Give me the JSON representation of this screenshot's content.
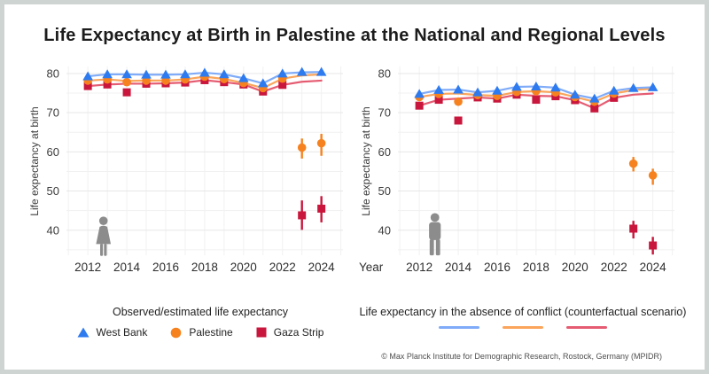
{
  "title": "Life Expectancy at Birth in Palestine at the National and Regional Levels",
  "footer": "© Max Planck Institute for Demographic Research, Rostock, Germany (MPIDR)",
  "colors": {
    "west_bank_marker": "#2e7bf0",
    "palestine_marker": "#f6821f",
    "gaza_marker": "#c9163c",
    "west_bank_line": "#7fabf8",
    "palestine_line": "#fba55b",
    "gaza_line": "#e55c72",
    "icon_gray": "#8c8c8c",
    "grid": "#e7e7e7",
    "grid_minor": "#f1f1f1",
    "tick_text": "#3c3c3c"
  },
  "legend_observed": {
    "title": "Observed/estimated life expectancy",
    "items": [
      {
        "label": "West Bank",
        "marker": "triangle",
        "color_key": "west_bank"
      },
      {
        "label": "Palestine",
        "marker": "circle",
        "color_key": "palestine"
      },
      {
        "label": "Gaza Strip",
        "marker": "square",
        "color_key": "gaza"
      }
    ]
  },
  "legend_counterfactual": {
    "title": "Life expectancy in the absence of conflict (counterfactual scenario)",
    "items": [
      {
        "series": "West Bank",
        "color_key": "west_bank"
      },
      {
        "series": "Palestine",
        "color_key": "palestine"
      },
      {
        "series": "Gaza Strip",
        "color_key": "gaza"
      }
    ]
  },
  "chart_data": [
    {
      "type": "line",
      "panel": "females",
      "icon": "female",
      "ylabel": "Life expectancy at birth",
      "xlabel": "",
      "x": [
        2012,
        2013,
        2014,
        2015,
        2016,
        2017,
        2018,
        2019,
        2020,
        2021,
        2022,
        2023,
        2024
      ],
      "x_tick_labels": [
        2012,
        2014,
        2016,
        2018,
        2020,
        2022,
        2024
      ],
      "y_tick_labels": [
        40,
        50,
        60,
        70,
        80
      ],
      "ylim": [
        33,
        82
      ],
      "grid": true,
      "series": [
        {
          "name": "West Bank",
          "marker": "triangle",
          "color_key": "west_bank",
          "values": [
            79.3,
            79.8,
            79.8,
            79.7,
            79.7,
            79.8,
            80.2,
            79.8,
            78.8,
            77.5,
            80.0,
            80.4,
            80.4
          ],
          "ci_low": [
            null,
            null,
            null,
            null,
            null,
            null,
            null,
            null,
            null,
            null,
            null,
            null,
            null
          ],
          "ci_high": [
            null,
            null,
            null,
            null,
            null,
            null,
            null,
            null,
            null,
            null,
            null,
            null,
            null
          ]
        },
        {
          "name": "Palestine",
          "marker": "circle",
          "color_key": "palestine",
          "values": [
            78.2,
            78.5,
            77.8,
            78.2,
            78.2,
            78.5,
            79.2,
            78.6,
            77.6,
            76.3,
            78.7,
            61.1,
            62.2
          ],
          "ci_low": [
            null,
            null,
            null,
            null,
            null,
            null,
            null,
            null,
            null,
            null,
            null,
            58.3,
            59.0
          ],
          "ci_high": [
            null,
            null,
            null,
            null,
            null,
            null,
            null,
            null,
            null,
            null,
            null,
            63.4,
            64.6
          ]
        },
        {
          "name": "Gaza Strip",
          "marker": "square",
          "color_key": "gaza",
          "values": [
            76.8,
            77.2,
            75.2,
            77.4,
            77.5,
            77.7,
            78.3,
            77.8,
            77.2,
            75.4,
            77.1,
            43.8,
            45.5
          ],
          "ci_low": [
            null,
            null,
            null,
            null,
            null,
            null,
            null,
            null,
            null,
            null,
            null,
            40.1,
            42.0
          ],
          "ci_high": [
            null,
            null,
            null,
            null,
            null,
            null,
            null,
            null,
            null,
            null,
            null,
            47.6,
            48.7
          ]
        }
      ],
      "counterfactual": [
        {
          "name": "West Bank",
          "color_key": "west_bank",
          "values": [
            79.3,
            79.8,
            79.8,
            79.7,
            79.7,
            79.8,
            80.2,
            79.8,
            78.8,
            77.5,
            80.0,
            80.3,
            80.4
          ]
        },
        {
          "name": "Palestine",
          "color_key": "palestine",
          "values": [
            78.2,
            78.5,
            78.1,
            78.2,
            78.2,
            78.5,
            79.2,
            78.6,
            77.6,
            76.3,
            78.7,
            79.5,
            79.8
          ]
        },
        {
          "name": "Gaza Strip",
          "color_key": "gaza",
          "values": [
            76.8,
            77.2,
            77.4,
            77.4,
            77.5,
            77.7,
            78.3,
            77.8,
            77.2,
            75.4,
            77.1,
            77.9,
            78.2
          ]
        }
      ]
    },
    {
      "type": "line",
      "panel": "males",
      "icon": "male",
      "ylabel": "Life expectancy at birth",
      "xlabel": "Year",
      "x": [
        2012,
        2013,
        2014,
        2015,
        2016,
        2017,
        2018,
        2019,
        2020,
        2021,
        2022,
        2023,
        2024
      ],
      "x_tick_labels": [
        2012,
        2014,
        2016,
        2018,
        2020,
        2022,
        2024
      ],
      "y_tick_labels": [
        40,
        50,
        60,
        70,
        80
      ],
      "ylim": [
        33,
        82
      ],
      "grid": true,
      "series": [
        {
          "name": "West Bank",
          "marker": "triangle",
          "color_key": "west_bank",
          "values": [
            74.8,
            75.8,
            75.9,
            75.2,
            75.6,
            76.6,
            76.7,
            76.4,
            74.6,
            73.6,
            75.6,
            76.3,
            76.5
          ],
          "ci_low": [
            null,
            null,
            null,
            null,
            null,
            null,
            null,
            null,
            null,
            null,
            null,
            null,
            null
          ],
          "ci_high": [
            null,
            null,
            null,
            null,
            null,
            null,
            null,
            null,
            null,
            null,
            null,
            null,
            null
          ]
        },
        {
          "name": "Palestine",
          "marker": "circle",
          "color_key": "palestine",
          "values": [
            74.0,
            74.8,
            72.8,
            74.5,
            74.3,
            75.3,
            75.5,
            75.2,
            74.0,
            72.8,
            74.9,
            57.0,
            54.0
          ],
          "ci_low": [
            null,
            null,
            null,
            null,
            null,
            null,
            null,
            null,
            null,
            null,
            null,
            55.0,
            51.6
          ],
          "ci_high": [
            null,
            null,
            null,
            null,
            null,
            null,
            null,
            null,
            null,
            null,
            null,
            58.7,
            55.7
          ]
        },
        {
          "name": "Gaza Strip",
          "marker": "square",
          "color_key": "gaza",
          "values": [
            71.8,
            73.3,
            68.0,
            73.9,
            73.6,
            74.6,
            73.3,
            74.2,
            73.2,
            71.1,
            73.8,
            40.4,
            36.1
          ],
          "ci_low": [
            null,
            null,
            null,
            null,
            null,
            null,
            null,
            null,
            null,
            null,
            null,
            37.9,
            33.8
          ],
          "ci_high": [
            null,
            null,
            null,
            null,
            null,
            null,
            null,
            null,
            null,
            null,
            null,
            42.4,
            38.3
          ]
        }
      ],
      "counterfactual": [
        {
          "name": "West Bank",
          "color_key": "west_bank",
          "values": [
            74.8,
            75.8,
            75.9,
            75.2,
            75.6,
            76.6,
            76.7,
            76.4,
            74.6,
            73.6,
            75.6,
            76.3,
            76.5
          ]
        },
        {
          "name": "Palestine",
          "color_key": "palestine",
          "values": [
            74.0,
            74.8,
            74.9,
            74.5,
            74.3,
            75.3,
            75.5,
            75.2,
            74.0,
            72.8,
            74.9,
            75.8,
            76.1
          ]
        },
        {
          "name": "Gaza Strip",
          "color_key": "gaza",
          "values": [
            71.8,
            73.3,
            73.6,
            73.9,
            73.6,
            74.6,
            74.3,
            74.2,
            73.2,
            71.1,
            73.8,
            74.6,
            74.9
          ]
        }
      ]
    }
  ]
}
